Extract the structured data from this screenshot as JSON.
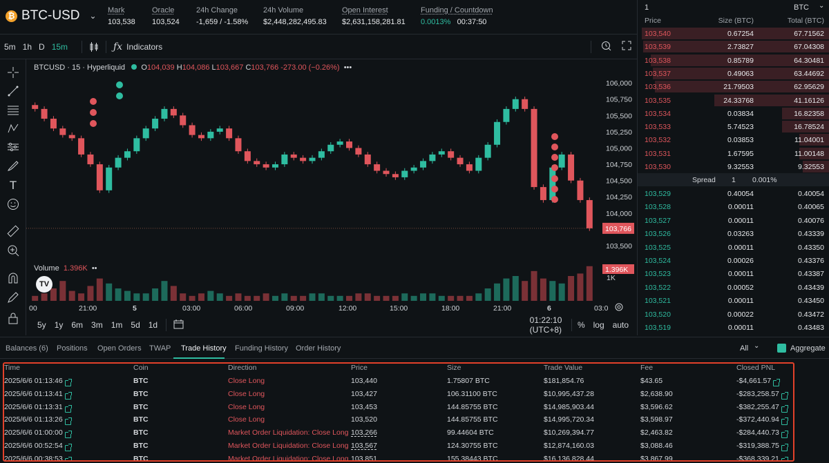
{
  "header": {
    "coin_label": "BTC-USD",
    "stats": [
      {
        "label": "Mark",
        "value": "103,538",
        "tone": "plain"
      },
      {
        "label": "Oracle",
        "value": "103,524",
        "tone": "plain"
      },
      {
        "label": "24h Change",
        "value": "-1,659 / -1.58%",
        "tone": "neg"
      },
      {
        "label": "24h Volume",
        "value": "$2,448,282,495.83",
        "tone": "plain"
      },
      {
        "label": "Open Interest",
        "value": "$2,631,158,281.81",
        "tone": "plain"
      },
      {
        "label": "Funding / Countdown",
        "value_pos": "0.0013%",
        "value_plain": "00:37:50",
        "tone": "mixed"
      }
    ]
  },
  "toolbar": {
    "intervals": [
      "5m",
      "1h",
      "D",
      "15m"
    ],
    "active_interval": "15m",
    "indicators_label": "Indicators"
  },
  "chart": {
    "legend_title": "BTCUSD · 15 · Hyperliquid",
    "ohlc": {
      "o_label": "O",
      "o": "104,039",
      "h_label": "H",
      "h": "104,086",
      "l_label": "L",
      "l": "103,667",
      "c_label": "C",
      "c": "103,766",
      "change": "-273.00 (−0.26%)"
    },
    "volume_label": "Volume",
    "volume_value": "1.396K",
    "y_ticks": [
      "106,000",
      "105,750",
      "105,500",
      "105,250",
      "105,000",
      "104,750",
      "104,500",
      "104,250",
      "104,000",
      "103,500"
    ],
    "last_price_label": "103,766",
    "volume_price_label": "1.396K",
    "volume_axis_label": "1K",
    "x_ticks": [
      "00",
      "21:00",
      "5",
      "03:00",
      "06:00",
      "09:00",
      "12:00",
      "15:00",
      "18:00",
      "21:00",
      "6",
      "03:0"
    ]
  },
  "chart_data": {
    "type": "candlestick",
    "title": "BTCUSD · 15 · Hyperliquid",
    "ylim": [
      103500,
      106150
    ],
    "candles_close": [
      105600,
      105450,
      105300,
      105200,
      105150,
      104900,
      104750,
      104350,
      104700,
      104850,
      104950,
      105150,
      105300,
      105450,
      105600,
      105500,
      105350,
      105200,
      105150,
      105250,
      105300,
      105150,
      104950,
      104800,
      104750,
      104700,
      104750,
      104900,
      104850,
      104800,
      104850,
      104950,
      105050,
      105100,
      105000,
      104900,
      104750,
      104650,
      104600,
      104550,
      104650,
      104700,
      104800,
      104900,
      104950,
      104850,
      104750,
      104650,
      104850,
      105050,
      105400,
      105600,
      105750,
      105600,
      104400,
      104200,
      104700,
      104900,
      104500,
      104200,
      103766
    ],
    "volumes": [
      0.2,
      0.3,
      0.5,
      0.8,
      0.4,
      0.3,
      0.6,
      0.9,
      0.7,
      0.5,
      0.4,
      0.3,
      0.3,
      0.5,
      0.8,
      0.6,
      0.3,
      0.2,
      0.3,
      0.4,
      0.3,
      0.2,
      0.3,
      0.2,
      0.2,
      0.3,
      0.2,
      0.3,
      0.2,
      0.2,
      0.3,
      0.3,
      0.2,
      0.2,
      0.2,
      0.3,
      0.3,
      0.2,
      0.2,
      0.2,
      0.3,
      0.2,
      0.3,
      0.3,
      0.2,
      0.2,
      0.2,
      0.2,
      0.3,
      0.5,
      0.7,
      0.9,
      1.0,
      0.8,
      1.2,
      0.9,
      0.8,
      0.7,
      1.0,
      1.1,
      1.396
    ]
  },
  "bottom_toolbar": {
    "ranges": [
      "5y",
      "1y",
      "6m",
      "3m",
      "1m",
      "5d",
      "1d"
    ],
    "clock": "01:22:10 (UTC+8)",
    "percent_label": "%",
    "log_label": "log",
    "auto_label": "auto"
  },
  "orderbook": {
    "depth": "1",
    "asset": "BTC",
    "headers": {
      "price": "Price",
      "size": "Size (BTC)",
      "total": "Total (BTC)"
    },
    "asks": [
      {
        "price": "103,540",
        "size": "0.67254",
        "total": "67.71562",
        "fill": 0.98
      },
      {
        "price": "103,539",
        "size": "2.73827",
        "total": "67.04308",
        "fill": 0.97
      },
      {
        "price": "103,538",
        "size": "0.85789",
        "total": "64.30481",
        "fill": 0.93
      },
      {
        "price": "103,537",
        "size": "0.49063",
        "total": "63.44692",
        "fill": 0.92
      },
      {
        "price": "103,536",
        "size": "21.79503",
        "total": "62.95629",
        "fill": 0.91
      },
      {
        "price": "103,535",
        "size": "24.33768",
        "total": "41.16126",
        "fill": 0.6
      },
      {
        "price": "103,534",
        "size": "0.03834",
        "total": "16.82358",
        "fill": 0.25
      },
      {
        "price": "103,533",
        "size": "5.74523",
        "total": "16.78524",
        "fill": 0.25
      },
      {
        "price": "103,532",
        "size": "0.03853",
        "total": "11.04001",
        "fill": 0.16
      },
      {
        "price": "103,531",
        "size": "1.67595",
        "total": "11.00148",
        "fill": 0.16
      },
      {
        "price": "103,530",
        "size": "9.32553",
        "total": "9.32553",
        "fill": 0.14
      }
    ],
    "spread": {
      "label": "Spread",
      "value": "1",
      "percent": "0.001%"
    },
    "bids": [
      {
        "price": "103,529",
        "size": "0.40054",
        "total": "0.40054"
      },
      {
        "price": "103,528",
        "size": "0.00011",
        "total": "0.40065"
      },
      {
        "price": "103,527",
        "size": "0.00011",
        "total": "0.40076"
      },
      {
        "price": "103,526",
        "size": "0.03263",
        "total": "0.43339"
      },
      {
        "price": "103,525",
        "size": "0.00011",
        "total": "0.43350"
      },
      {
        "price": "103,524",
        "size": "0.00026",
        "total": "0.43376"
      },
      {
        "price": "103,523",
        "size": "0.00011",
        "total": "0.43387"
      },
      {
        "price": "103,522",
        "size": "0.00052",
        "total": "0.43439"
      },
      {
        "price": "103,521",
        "size": "0.00011",
        "total": "0.43450"
      },
      {
        "price": "103,520",
        "size": "0.00022",
        "total": "0.43472"
      },
      {
        "price": "103,519",
        "size": "0.00011",
        "total": "0.43483"
      }
    ]
  },
  "tabs": {
    "items": [
      "Balances (6)",
      "Positions",
      "Open Orders",
      "TWAP",
      "Trade History",
      "Funding History",
      "Order History"
    ],
    "active": "Trade History",
    "filter_value": "All",
    "aggregate_label": "Aggregate"
  },
  "trade_history": {
    "columns": [
      "Time",
      "Coin",
      "Direction",
      "Price",
      "Size",
      "Trade Value",
      "Fee",
      "Closed PNL"
    ],
    "rows": [
      {
        "time": "2025/6/6 01:13:46",
        "coin": "BTC",
        "direction": "Close Long",
        "price": "103,440",
        "size": "1.75807 BTC",
        "value": "$181,854.76",
        "fee": "$43.65",
        "pnl": "-$4,661.57",
        "liq": false
      },
      {
        "time": "2025/6/6 01:13:41",
        "coin": "BTC",
        "direction": "Close Long",
        "price": "103,427",
        "size": "106.31100 BTC",
        "value": "$10,995,437.28",
        "fee": "$2,638.90",
        "pnl": "-$283,258.57",
        "liq": false
      },
      {
        "time": "2025/6/6 01:13:31",
        "coin": "BTC",
        "direction": "Close Long",
        "price": "103,453",
        "size": "144.85755 BTC",
        "value": "$14,985,903.44",
        "fee": "$3,596.62",
        "pnl": "-$382,255.47",
        "liq": false
      },
      {
        "time": "2025/6/6 01:13:26",
        "coin": "BTC",
        "direction": "Close Long",
        "price": "103,520",
        "size": "144.85755 BTC",
        "value": "$14,995,720.34",
        "fee": "$3,598.97",
        "pnl": "-$372,440.94",
        "liq": false
      },
      {
        "time": "2025/6/6 01:00:00",
        "coin": "BTC",
        "direction": "Market Order Liquidation: Close Long",
        "price": "103,266",
        "size": "99.44604 BTC",
        "value": "$10,269,394.77",
        "fee": "$2,463.82",
        "pnl": "-$284,440.73",
        "liq": true
      },
      {
        "time": "2025/6/6 00:52:54",
        "coin": "BTC",
        "direction": "Market Order Liquidation: Close Long",
        "price": "103,567",
        "size": "124.30755 BTC",
        "value": "$12,874,160.03",
        "fee": "$3,088.46",
        "pnl": "-$319,388.75",
        "liq": true
      },
      {
        "time": "2025/6/6 00:38:53",
        "coin": "BTC",
        "direction": "Market Order Liquidation: Close Long",
        "price": "103,851",
        "size": "155.38443 BTC",
        "value": "$16,136,828.44",
        "fee": "$3,867.99",
        "pnl": "-$368,339.21",
        "liq": true
      }
    ]
  },
  "colors": {
    "up": "#2fbda1",
    "down": "#e0565c",
    "accent": "#2fbda1",
    "highlight_border": "#e3412a"
  }
}
